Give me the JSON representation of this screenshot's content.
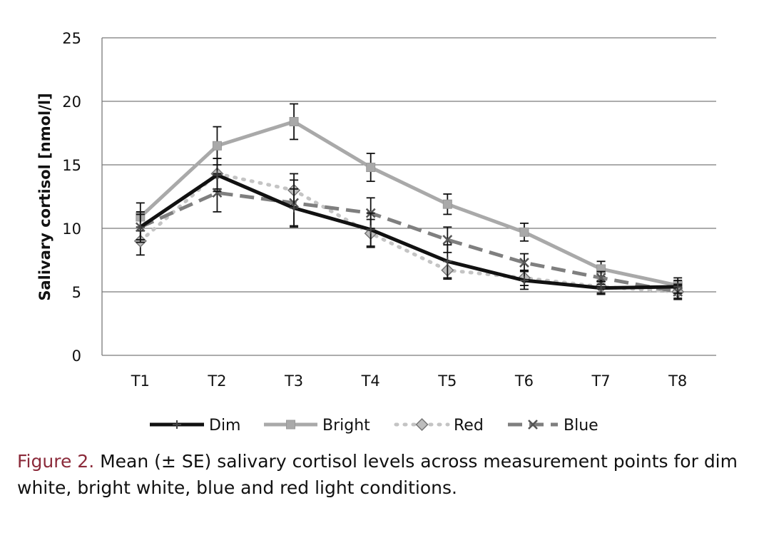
{
  "chart_data": {
    "type": "line",
    "title": "",
    "xlabel": "",
    "ylabel": "Salivary cortisol [nmol/l]",
    "categories": [
      "T1",
      "T2",
      "T3",
      "T4",
      "T5",
      "T6",
      "T7",
      "T8"
    ],
    "ylim": [
      0,
      25
    ],
    "yticks": [
      0,
      5,
      10,
      15,
      20,
      25
    ],
    "grid": "horizontal",
    "legend_position": "bottom",
    "series": [
      {
        "name": "Dim",
        "values": [
          10.1,
          14.2,
          11.6,
          9.9,
          7.4,
          5.9,
          5.3,
          5.4
        ],
        "error": [
          1.0,
          1.3,
          1.5,
          1.3,
          1.3,
          0.7,
          0.5,
          0.5
        ],
        "color": "#111111",
        "dash": "solid",
        "marker": "plus"
      },
      {
        "name": "Bright",
        "values": [
          10.9,
          16.5,
          18.4,
          14.8,
          11.9,
          9.7,
          6.8,
          5.5
        ],
        "error": [
          1.1,
          1.5,
          1.4,
          1.1,
          0.8,
          0.7,
          0.6,
          0.6
        ],
        "color": "#a9a9a9",
        "dash": "solid",
        "marker": "square"
      },
      {
        "name": "Red",
        "values": [
          9.0,
          14.3,
          13.0,
          9.6,
          6.7,
          6.1,
          5.4,
          5.0
        ],
        "error": [
          1.1,
          1.2,
          1.3,
          1.1,
          0.7,
          0.6,
          0.5,
          0.5
        ],
        "color": "#c4c4c4",
        "dash": "dotted",
        "marker": "diamond"
      },
      {
        "name": "Blue",
        "values": [
          10.1,
          12.8,
          12.0,
          11.2,
          9.1,
          7.3,
          6.1,
          5.0
        ],
        "error": [
          1.2,
          1.5,
          1.8,
          1.2,
          1.0,
          0.7,
          0.5,
          0.6
        ],
        "color": "#7f7f7f",
        "dash": "dashed",
        "marker": "x"
      }
    ]
  },
  "caption": {
    "label": "Figure 2.",
    "text": " Mean (± SE) salivary cortisol levels across measurement points for dim white, bright white, blue and red light conditions."
  }
}
